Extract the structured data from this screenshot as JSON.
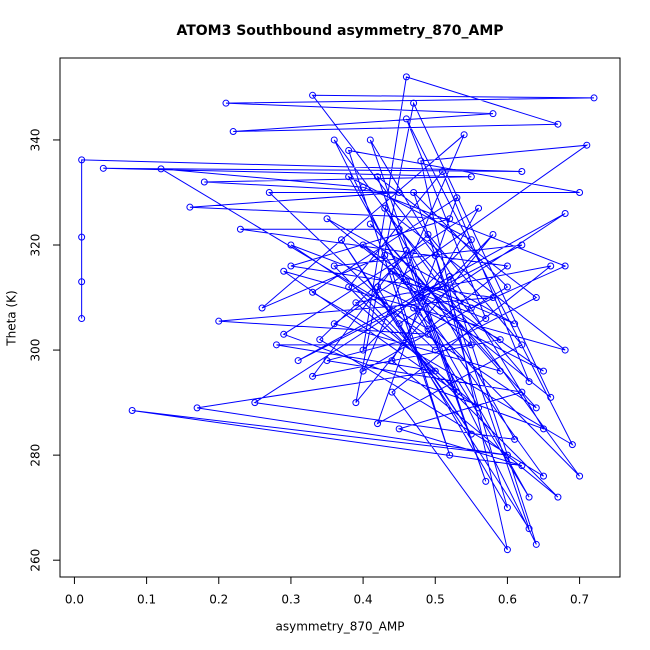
{
  "chart_data": {
    "type": "line",
    "title": "ATOM3 Southbound asymmetry_870_AMP",
    "x_label": "asymmetry_870_AMP",
    "y_label": "Theta (K)",
    "xlim": [
      -0.02,
      0.756
    ],
    "ylim": [
      256.8,
      355.6
    ],
    "xticks": [
      {
        "value": 0,
        "label": "0.0"
      },
      0.1,
      0.2,
      0.3,
      0.4,
      0.5,
      0.6,
      0.7
    ],
    "yticks": [
      260,
      280,
      300,
      320,
      340
    ],
    "series": [
      {
        "name": "asymmetry_870_AMP",
        "color": "#0000ff",
        "x": [
          0.01,
          0.01,
          0.01,
          0.01,
          0.62,
          0.04,
          0.55,
          0.18,
          0.45,
          0.16,
          0.52,
          0.3,
          0.58,
          0.2,
          0.49,
          0.35,
          0.62,
          0.45,
          0.62,
          0.08,
          0.6,
          0.17,
          0.5,
          0.28,
          0.55,
          0.4,
          0.65,
          0.42,
          0.6,
          0.5,
          0.33,
          0.72,
          0.21,
          0.58,
          0.22,
          0.67,
          0.46,
          0.4,
          0.55,
          0.38,
          0.63,
          0.47,
          0.7,
          0.36,
          0.64,
          0.52,
          0.25,
          0.61,
          0.43,
          0.68,
          0.29,
          0.56,
          0.39,
          0.66,
          0.44,
          0.6,
          0.48,
          0.71,
          0.36,
          0.59,
          0.41,
          0.64,
          0.3,
          0.57,
          0.46,
          0.69,
          0.33,
          0.53,
          0.42,
          0.62,
          0.49,
          0.34,
          0.65,
          0.43,
          0.26,
          0.54,
          0.4,
          0.6,
          0.47,
          0.63,
          0.37,
          0.55,
          0.45,
          0.68,
          0.31,
          0.51,
          0.58,
          0.39,
          0.47,
          0.66,
          0.35,
          0.61,
          0.44,
          0.52,
          0.38,
          0.7,
          0.27,
          0.5,
          0.64,
          0.42,
          0.57,
          0.46,
          0.33,
          0.59,
          0.48,
          0.62,
          0.36,
          0.53,
          0.41,
          0.65,
          0.29,
          0.56,
          0.44,
          0.67,
          0.38,
          0.51,
          0.63,
          0.45,
          0.23,
          0.6,
          0.49,
          0.12,
          0.4,
          0.68,
          0.55,
          0.46
        ],
        "values": [
          306,
          313,
          321.5,
          336.2,
          334,
          334.6,
          333,
          332,
          330,
          327.2,
          325,
          316,
          310,
          305.5,
          303,
          298,
          292,
          285,
          278,
          288.5,
          280,
          289,
          296,
          301,
          301,
          320,
          296,
          312,
          270,
          318,
          348.5,
          348,
          347,
          345,
          341.6,
          343,
          352,
          300,
          321,
          333,
          272,
          308,
          276,
          340,
          263,
          314,
          290,
          283,
          327,
          300,
          315,
          289,
          309,
          316,
          292,
          262,
          336,
          339,
          305,
          296,
          324,
          289,
          320,
          306,
          344,
          282,
          311,
          329,
          286,
          301,
          322,
          302,
          276,
          318,
          308,
          341,
          296,
          312,
          330,
          266,
          321,
          284,
          305,
          326,
          298,
          312,
          322,
          290,
          347,
          291,
          325,
          305,
          315,
          280,
          338,
          330,
          330,
          300,
          310,
          333,
          275,
          319,
          295,
          302,
          310,
          320,
          316,
          292,
          340,
          285,
          303,
          327,
          298,
          272,
          312,
          334,
          294,
          323,
          323,
          316,
          304,
          334.5,
          331,
          316,
          308,
          313
        ]
      }
    ]
  }
}
